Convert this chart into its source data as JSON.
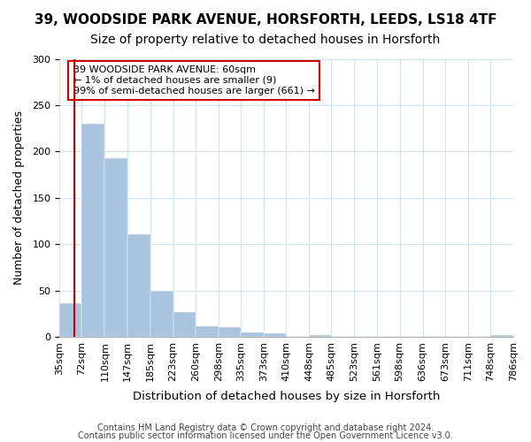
{
  "title1": "39, WOODSIDE PARK AVENUE, HORSFORTH, LEEDS, LS18 4TF",
  "title2": "Size of property relative to detached houses in Horsforth",
  "xlabel": "Distribution of detached houses by size in Horsforth",
  "ylabel": "Number of detached properties",
  "bar_values": [
    36,
    230,
    193,
    111,
    50,
    27,
    11,
    10,
    5,
    4,
    0,
    2,
    0,
    0,
    0,
    0,
    0,
    0,
    0,
    2
  ],
  "bin_edges": [
    35,
    72,
    110,
    147,
    185,
    223,
    260,
    298,
    335,
    373,
    410,
    448,
    485,
    523,
    561,
    598,
    636,
    673,
    711,
    748,
    786
  ],
  "tick_labels": [
    "35sqm",
    "72sqm",
    "110sqm",
    "147sqm",
    "185sqm",
    "223sqm",
    "260sqm",
    "298sqm",
    "335sqm",
    "373sqm",
    "410sqm",
    "448sqm",
    "485sqm",
    "523sqm",
    "561sqm",
    "598sqm",
    "636sqm",
    "673sqm",
    "711sqm",
    "748sqm",
    "786sqm"
  ],
  "bar_color": "#aac4de",
  "bar_edge_color": "#aac4de",
  "vline_x": 60,
  "vline_color": "#cc0000",
  "annotation_title": "39 WOODSIDE PARK AVENUE: 60sqm",
  "annotation_line1": "← 1% of detached houses are smaller (9)",
  "annotation_line2": "99% of semi-detached houses are larger (661) →",
  "annotation_box_edgecolor": "#cc0000",
  "ylim": [
    0,
    300
  ],
  "yticks": [
    0,
    50,
    100,
    150,
    200,
    250,
    300
  ],
  "footer1": "Contains HM Land Registry data © Crown copyright and database right 2024.",
  "footer2": "Contains public sector information licensed under the Open Government Licence v3.0.",
  "background_color": "#ffffff",
  "grid_color": "#d0e4f0",
  "title1_fontsize": 11,
  "title2_fontsize": 10,
  "xlabel_fontsize": 9.5,
  "ylabel_fontsize": 9,
  "tick_fontsize": 8,
  "footer_fontsize": 7
}
